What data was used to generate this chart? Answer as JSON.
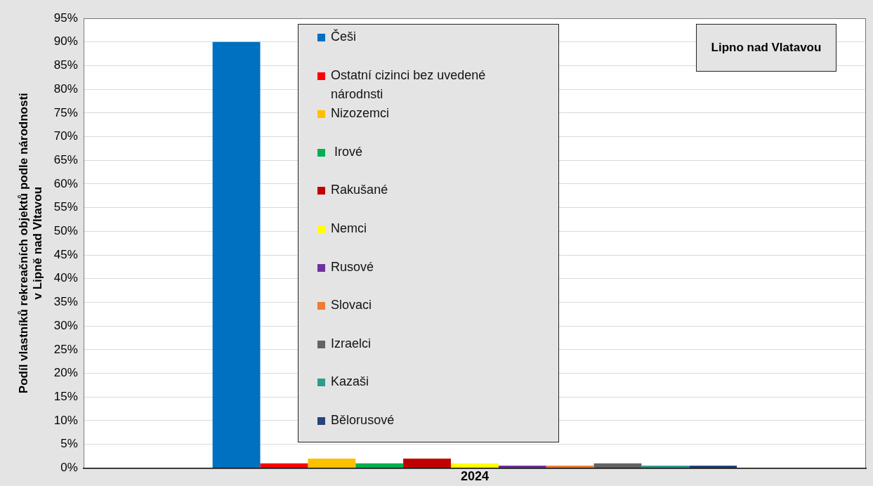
{
  "chart_data": {
    "type": "bar",
    "ylabel": "Podíl vlastníků rekreačních objektů podle národnosti\nv Lipně nad Vltavou",
    "categories": [
      "2024"
    ],
    "series": [
      {
        "name": "Češi",
        "color": "#0070c0",
        "values": [
          90
        ]
      },
      {
        "name": "Ostatní cizinci bez uvedené národnsti",
        "color": "#ff0000",
        "values": [
          1
        ]
      },
      {
        "name": "Nizozemci",
        "color": "#ffc000",
        "values": [
          2
        ]
      },
      {
        "name": " Irové",
        "color": "#00b050",
        "values": [
          1
        ]
      },
      {
        "name": "Rakušané",
        "color": "#c00000",
        "values": [
          2
        ]
      },
      {
        "name": "Nemci",
        "color": "#ffff00",
        "values": [
          1
        ]
      },
      {
        "name": "Rusové",
        "color": "#7030a0",
        "values": [
          0.5
        ]
      },
      {
        "name": "Slovaci",
        "color": "#ed7d31",
        "values": [
          0.5
        ]
      },
      {
        "name": "Izraelci",
        "color": "#636363",
        "values": [
          1
        ]
      },
      {
        "name": "Kazaši",
        "color": "#2e9b8f",
        "values": [
          0.5
        ]
      },
      {
        "name": "Bělorusové",
        "color": "#264478",
        "values": [
          0.5
        ]
      }
    ],
    "ylim": [
      0,
      95
    ],
    "yticks": [
      {
        "value": 0,
        "label": "0%"
      },
      {
        "value": 5,
        "label": "5%"
      },
      {
        "value": 10,
        "label": "10%"
      },
      {
        "value": 15,
        "label": "15%"
      },
      {
        "value": 20,
        "label": "20%"
      },
      {
        "value": 25,
        "label": "25%"
      },
      {
        "value": 30,
        "label": "30%"
      },
      {
        "value": 35,
        "label": "35%"
      },
      {
        "value": 40,
        "label": "40%"
      },
      {
        "value": 45,
        "label": "45%"
      },
      {
        "value": 50,
        "label": "50%"
      },
      {
        "value": 55,
        "label": "55%"
      },
      {
        "value": 60,
        "label": "60%"
      },
      {
        "value": 65,
        "label": "65%"
      },
      {
        "value": 70,
        "label": "70%"
      },
      {
        "value": 75,
        "label": "75%"
      },
      {
        "value": 80,
        "label": "80%"
      },
      {
        "value": 85,
        "label": "85%"
      },
      {
        "value": 90,
        "label": "90%"
      },
      {
        "value": 95,
        "label": "95%"
      }
    ],
    "grid": "y",
    "legend": "top",
    "annotations": [
      "Lipno nad Vlatavou"
    ]
  }
}
